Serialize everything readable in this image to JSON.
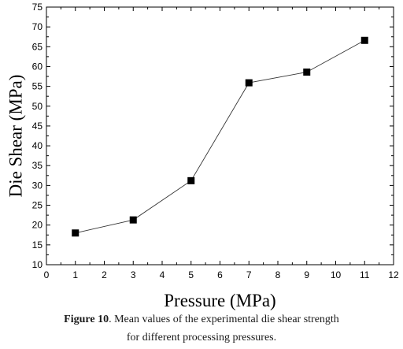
{
  "chart_data": {
    "type": "line",
    "title": "",
    "xlabel": "Pressure (MPa)",
    "ylabel": "Die Shear (MPa)",
    "xlim": [
      0,
      12
    ],
    "ylim": [
      10,
      75
    ],
    "x_ticks": [
      0,
      1,
      2,
      3,
      4,
      5,
      6,
      7,
      8,
      9,
      10,
      11,
      12
    ],
    "y_ticks": [
      10,
      15,
      20,
      25,
      30,
      35,
      40,
      45,
      50,
      55,
      60,
      65,
      70,
      75
    ],
    "grid": false,
    "marker": "square",
    "series": [
      {
        "x": [
          1,
          3,
          5,
          7,
          9,
          11
        ],
        "values": [
          18.0,
          21.3,
          31.2,
          55.9,
          58.6,
          66.6
        ]
      }
    ]
  },
  "caption": {
    "label": "Figure 10",
    "line1": ". Mean values of the experimental die shear strength",
    "line2": "for different processing pressures."
  }
}
